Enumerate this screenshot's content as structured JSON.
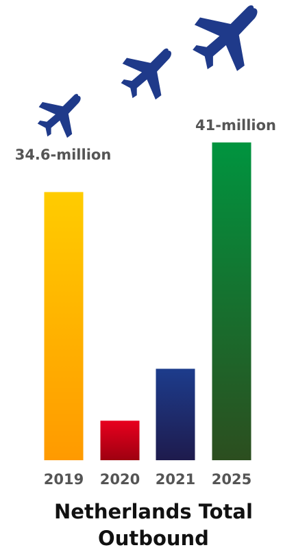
{
  "chart_data": {
    "type": "bar",
    "title_lines": [
      "Netherlands Total",
      "Outbound"
    ],
    "categories": [
      "2019",
      "2020",
      "2021",
      "2025"
    ],
    "values": [
      34.6,
      5.1,
      11.8,
      41.0
    ],
    "value_labels": [
      "34.6-million",
      "",
      "",
      "41-million"
    ],
    "unit": "million",
    "ylim": [
      0,
      41
    ],
    "grid": false,
    "legend": "none",
    "bar_gradients": [
      [
        "#ffcc00",
        "#ff9a00"
      ],
      [
        "#e8001e",
        "#9e0010"
      ],
      [
        "#1d3c8c",
        "#1e1b4d"
      ],
      [
        "#00943f",
        "#2c4e1f"
      ]
    ],
    "plane_color": "#1f3a8a",
    "label_color": "#555555",
    "title_color": "#111111"
  }
}
